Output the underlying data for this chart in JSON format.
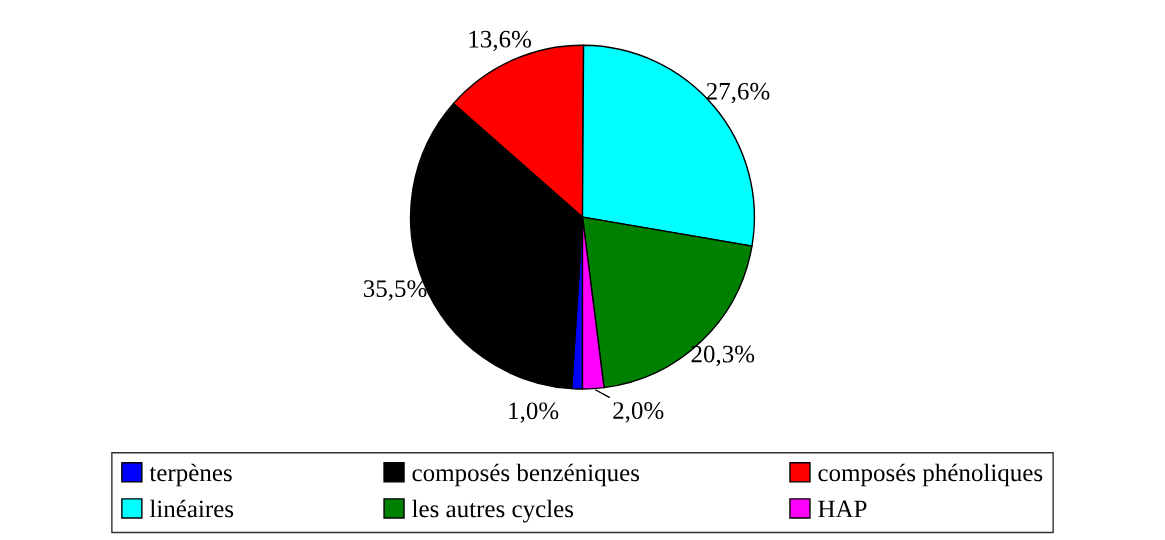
{
  "chart_data": {
    "type": "pie",
    "categories": [
      "terpènes",
      "composés benzéniques",
      "composés phénoliques",
      "linéaires",
      "les autres cycles",
      "HAP"
    ],
    "values": [
      1.0,
      35.5,
      13.6,
      27.6,
      20.3,
      2.0
    ],
    "colors": [
      "#0000ff",
      "#000000",
      "#ff0000",
      "#00ffff",
      "#008000",
      "#ff00ff"
    ],
    "value_labels": [
      "1,0%",
      "35,5%",
      "13,6%",
      "27,6%",
      "20,3%",
      "2,0%"
    ],
    "legend": "bottom"
  }
}
